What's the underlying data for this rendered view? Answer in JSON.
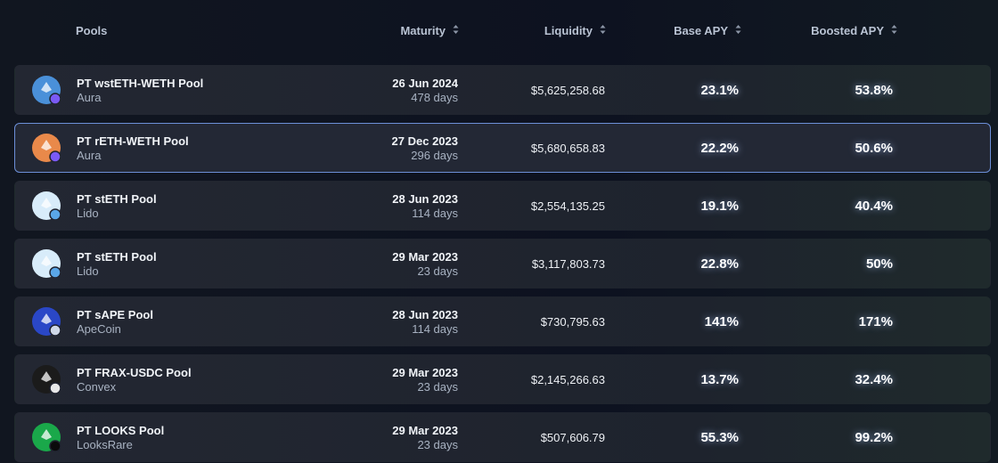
{
  "header": {
    "columns": [
      "Pools",
      "Maturity",
      "Liquidity",
      "Base APY",
      "Boosted APY"
    ]
  },
  "table": {
    "rows": [
      {
        "pool": "PT wstETH-WETH Pool",
        "protocol": "Aura",
        "maturity": "26 Jun 2024",
        "days": "478 days",
        "liquidity": "$5,625,258.68",
        "base_apy": "23.1%",
        "boosted_apy": "53.8%"
      },
      {
        "pool": "PT rETH-WETH Pool",
        "protocol": "Aura",
        "maturity": "27 Dec 2023",
        "days": "296 days",
        "liquidity": "$5,680,658.83",
        "base_apy": "22.2%",
        "boosted_apy": "50.6%"
      },
      {
        "pool": "PT stETH Pool",
        "protocol": "Lido",
        "maturity": "28 Jun 2023",
        "days": "114 days",
        "liquidity": "$2,554,135.25",
        "base_apy": "19.1%",
        "boosted_apy": "40.4%"
      },
      {
        "pool": "PT stETH Pool",
        "protocol": "Lido",
        "maturity": "29 Mar 2023",
        "days": "23 days",
        "liquidity": "$3,117,803.73",
        "base_apy": "22.8%",
        "boosted_apy": "50%"
      },
      {
        "pool": "PT sAPE Pool",
        "protocol": "ApeCoin",
        "maturity": "28 Jun 2023",
        "days": "114 days",
        "liquidity": "$730,795.63",
        "base_apy": "141%",
        "boosted_apy": "171%"
      },
      {
        "pool": "PT FRAX-USDC Pool",
        "protocol": "Convex",
        "maturity": "29 Mar 2023",
        "days": "23 days",
        "liquidity": "$2,145,266.63",
        "base_apy": "13.7%",
        "boosted_apy": "32.4%"
      },
      {
        "pool": "PT LOOKS Pool",
        "protocol": "LooksRare",
        "maturity": "29 Mar 2023",
        "days": "23 days",
        "liquidity": "$507,606.79",
        "base_apy": "55.3%",
        "boosted_apy": "99.2%"
      }
    ]
  }
}
